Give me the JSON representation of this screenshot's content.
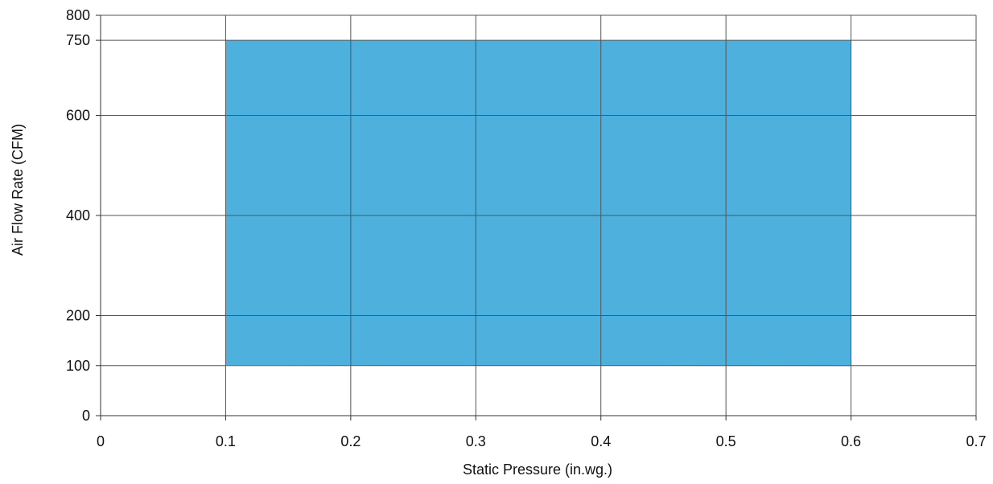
{
  "chart_data": {
    "type": "area",
    "title": "",
    "xlabel": "Static Pressure (in.wg.)",
    "ylabel": "Air Flow Rate (CFM)",
    "xlim": [
      0,
      0.7
    ],
    "ylim": [
      0,
      800
    ],
    "x_ticks": [
      0,
      0.1,
      0.2,
      0.3,
      0.4,
      0.5,
      0.6,
      0.7
    ],
    "x_tick_labels": [
      "0",
      "0.1",
      "0.2",
      "0.3",
      "0.4",
      "0.5",
      "0.6",
      "0.7"
    ],
    "y_ticks": [
      0,
      100,
      200,
      400,
      600,
      750,
      800
    ],
    "y_tick_labels": [
      "0",
      "100",
      "200",
      "400",
      "600",
      "750",
      "800"
    ],
    "grid": true,
    "series": [
      {
        "color": "#4eb0dd",
        "x": [
          0.1,
          0.6
        ],
        "upper": [
          750,
          750
        ],
        "lower": [
          101,
          99
        ]
      }
    ]
  }
}
